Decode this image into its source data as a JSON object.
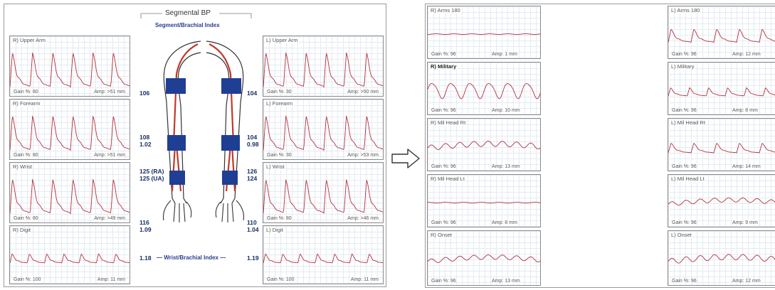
{
  "left_report": {
    "title": "Segmental BP",
    "subtitle": "Segment/Brachial Index",
    "wbi_label": "Wrist/Brachial Index",
    "wbi_right": "1.18",
    "wbi_left": "1.19",
    "right_traces": [
      {
        "label": "R) Upper Arm",
        "gain": "Gain %: 80",
        "amp": "Amp: >51 mm"
      },
      {
        "label": "R) Forearm",
        "gain": "Gain %: 80",
        "amp": "Amp: >51 mm"
      },
      {
        "label": "R) Wrist",
        "gain": "Gain %: 80",
        "amp": "Amp: >49 mm"
      },
      {
        "label": "R) Digit",
        "gain": "Gain %: 100",
        "amp": "Amp: 11 mm"
      }
    ],
    "left_traces": [
      {
        "label": "L) Upper Arm",
        "gain": "Gain %: 30",
        "amp": "Amp: >50 mm"
      },
      {
        "label": "L) Forearm",
        "gain": "Gain %: 30",
        "amp": "Amp: >53 mm"
      },
      {
        "label": "L) Wrist",
        "gain": "Gain %: 80",
        "amp": "Amp: >46 mm"
      },
      {
        "label": "L) Digit",
        "gain": "Gain %: 100",
        "amp": "Amp: 11 mm"
      }
    ],
    "pressures": {
      "r_upper": "106",
      "r_forearm": "108",
      "r_forearm_idx": "1.02",
      "r_wrist_ra": "125 (RA)",
      "r_wrist_ua": "125 (UA)",
      "r_digit": "116",
      "r_digit_idx": "1.09",
      "l_upper": "104",
      "l_forearm": "104",
      "l_forearm_idx": "0.98",
      "l_wrist_1": "126",
      "l_wrist_2": "124",
      "l_digit": "110",
      "l_digit_idx": "1.04"
    }
  },
  "right_report": {
    "right_traces": [
      {
        "label": "R) Arms 180",
        "gain": "Gain %: 96",
        "amp": "Amp: 1 mm"
      },
      {
        "label": "R) Military",
        "gain": "Gain %: 96",
        "amp": "Amp: 10 mm"
      },
      {
        "label": "R) Mil Head Rt",
        "gain": "Gain %: 96",
        "amp": "Amp: 13 mm"
      },
      {
        "label": "R) Mil Head Lt",
        "gain": "Gain %: 96",
        "amp": "Amp: 8 mm"
      },
      {
        "label": "R) Onset",
        "gain": "Gain %: 96",
        "amp": "Amp: 13 mm"
      }
    ],
    "left_traces": [
      {
        "label": "L) Arms 180",
        "gain": "Gain %: 96",
        "amp": "Amp: 12 mm"
      },
      {
        "label": "L) Military",
        "gain": "Gain %: 96",
        "amp": "Amp: 8 mm"
      },
      {
        "label": "L) Mil Head Rt",
        "gain": "Gain %: 96",
        "amp": "Amp: 14 mm"
      },
      {
        "label": "L) Mil Head Lt",
        "gain": "Gain %: 96",
        "amp": "Amp: 9 mm"
      },
      {
        "label": "L) Onset",
        "gain": "Gain %: 96",
        "amp": "Amp: 12 mm"
      }
    ]
  },
  "colors": {
    "waveform": "#b8303a",
    "cuff": "#1f3f95",
    "artery": "#c0392b",
    "index_text": "#1a2e66"
  },
  "icons": {
    "transition": "right-arrow-icon"
  }
}
